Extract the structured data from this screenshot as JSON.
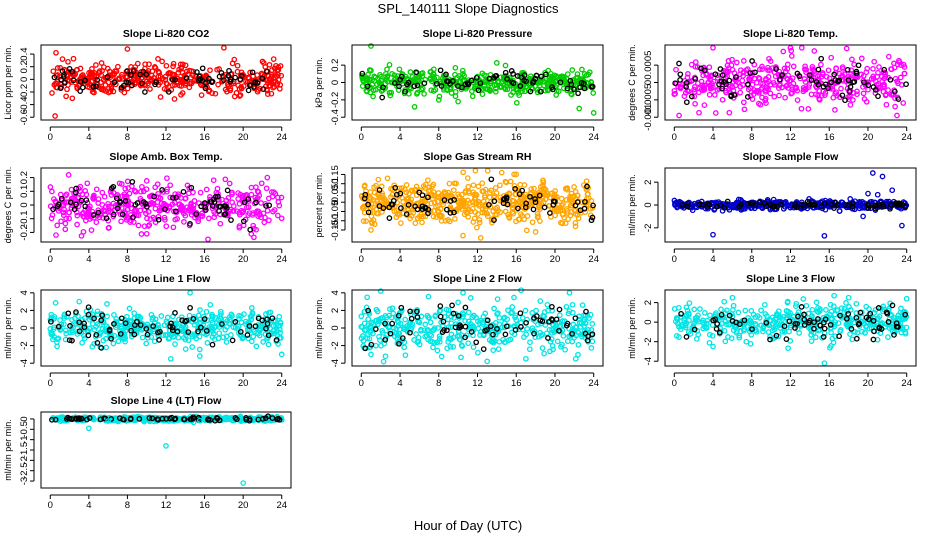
{
  "figure": {
    "title": "SPL_140111  Slope Diagnostics",
    "xlabel": "Hour of Day (UTC)"
  },
  "chart_data": [
    {
      "type": "scatter",
      "title": "Slope Li-820 CO2",
      "ylabel": "Licor ppm per min.",
      "color": "#ff0000",
      "xlim": [
        0,
        24
      ],
      "ylim": [
        -0.6,
        0.5
      ],
      "xticks": [
        0,
        4,
        8,
        12,
        16,
        20,
        24
      ],
      "yticks": [
        -0.6,
        -0.4,
        -0.2,
        0.0,
        0.2,
        0.4
      ],
      "spread": 0.12,
      "n_points": 420,
      "outliers": [
        [
          0.5,
          -0.58
        ],
        [
          8.0,
          0.48
        ],
        [
          18.0,
          0.5
        ],
        [
          0.6,
          0.42
        ],
        [
          23.8,
          -0.15
        ]
      ]
    },
    {
      "type": "scatter",
      "title": "Slope Li-820 Pressure",
      "ylabel": "kPa per min.",
      "color": "#00cc00",
      "xlim": [
        0,
        24
      ],
      "ylim": [
        -0.4,
        0.4
      ],
      "xticks": [
        0,
        4,
        8,
        12,
        16,
        20,
        24
      ],
      "yticks": [
        -0.4,
        -0.2,
        0.0,
        0.2
      ],
      "spread": 0.07,
      "n_points": 420,
      "outliers": [
        [
          1.0,
          0.42
        ],
        [
          5.5,
          -0.28
        ],
        [
          8.0,
          -0.2
        ],
        [
          10.0,
          -0.22
        ],
        [
          22.5,
          -0.3
        ],
        [
          24.0,
          -0.35
        ],
        [
          3.0,
          -0.15
        ]
      ]
    },
    {
      "type": "scatter",
      "title": "Slope Li-820 Temp.",
      "ylabel": "degrees C per min.",
      "color": "#ff00ff",
      "xlim": [
        0,
        24
      ],
      "ylim": [
        -0.001,
        0.001
      ],
      "xticks": [
        0,
        4,
        8,
        12,
        16,
        20,
        24
      ],
      "yticks": [
        -0.001,
        -0.0005,
        0.0,
        0.0005
      ],
      "ytick_labels": [
        "-0.001",
        "-0.0005",
        "0",
        "0.0005"
      ],
      "spread": 0.00035,
      "n_points": 420,
      "outliers": [
        [
          4.0,
          0.001
        ],
        [
          17.8,
          0.00098
        ],
        [
          0.5,
          -0.00095
        ],
        [
          23.0,
          -0.00095
        ]
      ]
    },
    {
      "type": "scatter",
      "title": "Slope Amb. Box Temp.",
      "ylabel": "degrees C per min.",
      "color": "#ff00ff",
      "xlim": [
        0,
        24
      ],
      "ylim": [
        -0.25,
        0.25
      ],
      "xticks": [
        0,
        4,
        8,
        12,
        16,
        20,
        24
      ],
      "yticks": [
        -0.2,
        -0.1,
        0.0,
        0.1,
        0.2
      ],
      "spread": 0.08,
      "n_points": 420,
      "outliers": [
        [
          1.9,
          0.22
        ],
        [
          22.5,
          0.2
        ],
        [
          0.6,
          -0.22
        ],
        [
          10.0,
          -0.21
        ]
      ]
    },
    {
      "type": "scatter",
      "title": "Slope Gas Stream RH",
      "ylabel": "percent per min.",
      "color": "#ffa500",
      "xlim": [
        0,
        24
      ],
      "ylim": [
        -0.2,
        0.17
      ],
      "xticks": [
        0,
        4,
        8,
        12,
        16,
        20,
        24
      ],
      "yticks": [
        -0.15,
        -0.1,
        -0.05,
        0.0,
        0.05,
        0.1,
        0.15
      ],
      "spread": 0.06,
      "n_points": 520,
      "outliers": [
        [
          14.5,
          0.16
        ],
        [
          16.0,
          0.15
        ],
        [
          10.5,
          -0.18
        ],
        [
          1.0,
          -0.15
        ],
        [
          18.0,
          -0.16
        ]
      ]
    },
    {
      "type": "scatter",
      "title": "Slope Sample Flow",
      "ylabel": "ml/min per min.",
      "color": "#0000cc",
      "xlim": [
        0,
        24
      ],
      "ylim": [
        -3,
        3
      ],
      "xticks": [
        0,
        4,
        8,
        12,
        16,
        20,
        24
      ],
      "yticks": [
        -2,
        0,
        2
      ],
      "spread": 0.18,
      "n_points": 420,
      "outliers": [
        [
          4.0,
          -2.6
        ],
        [
          15.5,
          -2.7
        ],
        [
          20.5,
          2.8
        ],
        [
          21.5,
          2.5
        ],
        [
          22.5,
          1.3
        ],
        [
          20.0,
          1.0
        ],
        [
          23.5,
          -1.8
        ],
        [
          19.5,
          -1.0
        ],
        [
          21.0,
          0.9
        ]
      ]
    },
    {
      "type": "scatter",
      "title": "Slope Line 1 Flow",
      "ylabel": "ml/min per min.",
      "color": "#00e5e5",
      "xlim": [
        0,
        24
      ],
      "ylim": [
        -4,
        4
      ],
      "xticks": [
        0,
        4,
        8,
        12,
        16,
        20,
        24
      ],
      "yticks": [
        -4,
        -2,
        0,
        2,
        4
      ],
      "spread": 1.0,
      "n_points": 420,
      "outliers": [
        [
          14.5,
          4.0
        ],
        [
          12.5,
          -3.5
        ],
        [
          15.5,
          -3.2
        ],
        [
          3.0,
          3.0
        ],
        [
          24.0,
          -3.0
        ]
      ]
    },
    {
      "type": "scatter",
      "title": "Slope Line 2 Flow",
      "ylabel": "ml/min per min.",
      "color": "#00e5e5",
      "xlim": [
        0,
        24
      ],
      "ylim": [
        -4,
        4
      ],
      "xticks": [
        0,
        4,
        8,
        12,
        16,
        20,
        24
      ],
      "yticks": [
        -4,
        -2,
        0,
        2,
        4
      ],
      "spread": 1.3,
      "n_points": 420,
      "outliers": [
        [
          2.0,
          4.2
        ],
        [
          10.5,
          4.0
        ],
        [
          16.5,
          4.3
        ],
        [
          21.5,
          4.0
        ],
        [
          13.0,
          -3.8
        ],
        [
          17.0,
          -3.5
        ],
        [
          1.0,
          -3.0
        ]
      ]
    },
    {
      "type": "scatter",
      "title": "Slope Line 3 Flow",
      "ylabel": "ml/min per min.",
      "color": "#00e5e5",
      "xlim": [
        0,
        24
      ],
      "ylim": [
        -4.2,
        3
      ],
      "xticks": [
        0,
        4,
        8,
        12,
        16,
        20,
        24
      ],
      "yticks": [
        -4,
        -2,
        0,
        2
      ],
      "spread": 0.9,
      "n_points": 420,
      "outliers": [
        [
          15.5,
          -4.2
        ],
        [
          18.0,
          2.5
        ],
        [
          16.5,
          2.7
        ],
        [
          24.0,
          2.4
        ],
        [
          6.0,
          2.5
        ],
        [
          4.0,
          -2.5
        ]
      ]
    },
    {
      "type": "scatter",
      "title": "Slope Line 4 (LT) Flow",
      "ylabel": "ml/min per min.",
      "color": "#00e5e5",
      "xlim": [
        0,
        24
      ],
      "ylim": [
        -3.2,
        0.2
      ],
      "xticks": [
        0,
        4,
        8,
        12,
        16,
        20,
        24
      ],
      "yticks": [
        -3.0,
        -2.5,
        -2.0,
        -1.5,
        -1.0,
        -0.5,
        0.0
      ],
      "spread": 0.05,
      "n_points": 420,
      "outliers": [
        [
          4.0,
          -0.45
        ],
        [
          12.0,
          -1.3
        ],
        [
          20.0,
          -3.1
        ],
        [
          6.0,
          -0.1
        ],
        [
          15.5,
          -0.08
        ]
      ]
    }
  ]
}
